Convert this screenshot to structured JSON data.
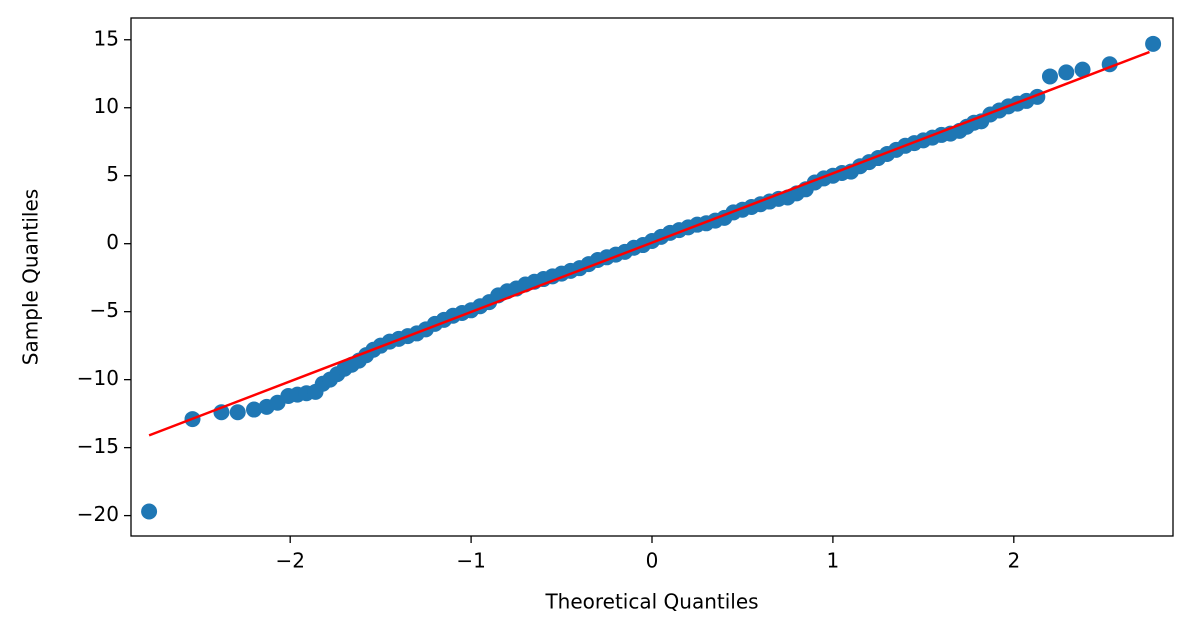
{
  "chart_data": {
    "type": "scatter",
    "xlabel": "Theoretical Quantiles",
    "ylabel": "Sample Quantiles",
    "color": "#1f77b4",
    "x": [
      -2.78,
      -2.54,
      -2.38,
      -2.29,
      -2.2,
      -2.13,
      -2.07,
      -2.01,
      -1.96,
      -1.91,
      -1.86,
      -1.82,
      -1.78,
      -1.74,
      -1.7,
      -1.66,
      -1.62,
      -1.58,
      -1.54,
      -1.5,
      -1.45,
      -1.4,
      -1.35,
      -1.3,
      -1.25,
      -1.2,
      -1.15,
      -1.1,
      -1.05,
      -1.0,
      -0.95,
      -0.9,
      -0.85,
      -0.8,
      -0.75,
      -0.7,
      -0.65,
      -0.6,
      -0.55,
      -0.5,
      -0.45,
      -0.4,
      -0.35,
      -0.3,
      -0.25,
      -0.2,
      -0.15,
      -0.1,
      -0.05,
      0,
      0.05,
      0.1,
      0.15,
      0.2,
      0.25,
      0.3,
      0.35,
      0.4,
      0.45,
      0.5,
      0.55,
      0.6,
      0.65,
      0.7,
      0.75,
      0.8,
      0.85,
      0.9,
      0.95,
      1.0,
      1.05,
      1.1,
      1.15,
      1.2,
      1.25,
      1.3,
      1.35,
      1.4,
      1.45,
      1.5,
      1.55,
      1.6,
      1.65,
      1.7,
      1.74,
      1.78,
      1.82,
      1.87,
      1.92,
      1.97,
      2.02,
      2.07,
      2.13,
      2.2,
      2.29,
      2.38,
      2.53,
      2.77
    ],
    "values": [
      -19.7,
      -12.9,
      -12.4,
      -12.4,
      -12.2,
      -12.0,
      -11.7,
      -11.2,
      -11.1,
      -11.0,
      -10.9,
      -10.3,
      -10.0,
      -9.6,
      -9.2,
      -8.9,
      -8.6,
      -8.2,
      -7.8,
      -7.5,
      -7.2,
      -7.0,
      -6.8,
      -6.6,
      -6.3,
      -5.9,
      -5.6,
      -5.3,
      -5.1,
      -4.9,
      -4.6,
      -4.3,
      -3.8,
      -3.5,
      -3.3,
      -3.0,
      -2.8,
      -2.6,
      -2.4,
      -2.2,
      -2.0,
      -1.8,
      -1.5,
      -1.2,
      -1.0,
      -0.8,
      -0.6,
      -0.3,
      -0.1,
      0.2,
      0.5,
      0.8,
      1.0,
      1.2,
      1.4,
      1.5,
      1.7,
      1.9,
      2.3,
      2.5,
      2.7,
      2.9,
      3.1,
      3.3,
      3.4,
      3.7,
      4.0,
      4.5,
      4.8,
      5.0,
      5.2,
      5.3,
      5.7,
      6.0,
      6.3,
      6.6,
      6.9,
      7.2,
      7.4,
      7.6,
      7.8,
      8.0,
      8.1,
      8.3,
      8.6,
      8.9,
      9.0,
      9.5,
      9.8,
      10.1,
      10.3,
      10.5,
      10.8,
      12.3,
      12.6,
      12.8,
      13.2,
      14.7
    ],
    "line": {
      "color": "red",
      "x": [
        -2.78,
        2.75
      ],
      "y": [
        -14.1,
        14.1
      ]
    },
    "xlim": [
      -2.88,
      2.88
    ],
    "ylim": [
      -21.5,
      16.6
    ],
    "xticks": [
      {
        "value": -2,
        "label": "−2"
      },
      {
        "value": -1,
        "label": "−1"
      },
      0,
      1,
      2
    ],
    "yticks": [
      {
        "value": -20,
        "label": "−20"
      },
      {
        "value": -15,
        "label": "−15"
      },
      {
        "value": -10,
        "label": "−10"
      },
      {
        "value": -5,
        "label": "−5"
      },
      0,
      5,
      10,
      15
    ],
    "grid": false
  }
}
